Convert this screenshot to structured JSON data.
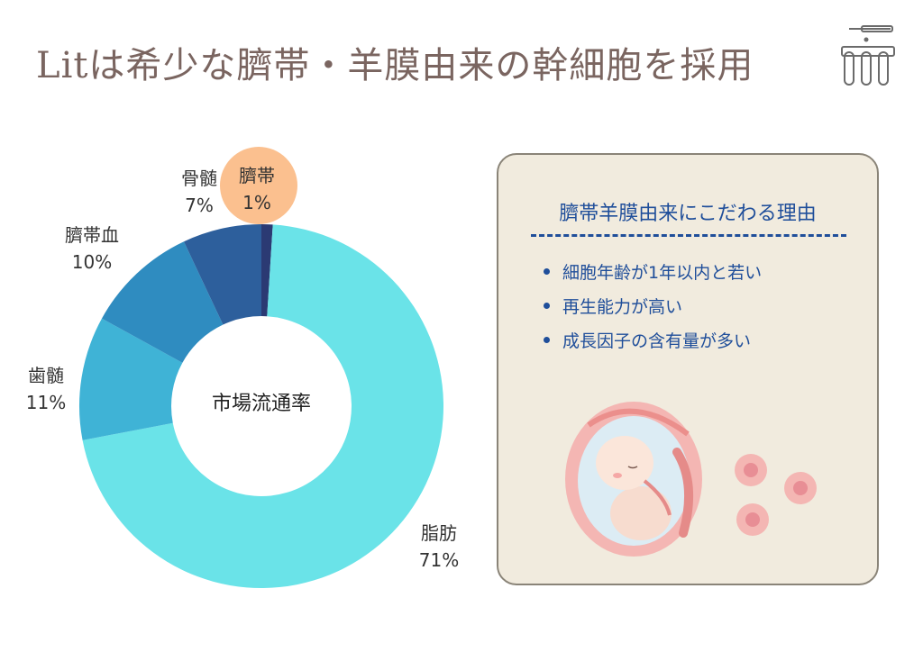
{
  "page": {
    "title": "Litは希少な臍帯・羊膜由来の幹細胞を採用"
  },
  "chart_data": {
    "type": "pie",
    "center_label": "市場流通率",
    "categories": [
      "臍帯",
      "脂肪",
      "歯髄",
      "臍帯血",
      "骨髄"
    ],
    "values": [
      1,
      71,
      11,
      10,
      7
    ],
    "value_labels": [
      "1%",
      "71%",
      "11%",
      "10%",
      "7%"
    ],
    "colors": [
      "#2b3a73",
      "#6ae3e8",
      "#3fb3d6",
      "#2f8cc0",
      "#2d5f9c"
    ],
    "highlight": "臍帯",
    "highlight_color": "#fbc08f"
  },
  "reasons": {
    "title": "臍帯羊膜由来にこだわる理由",
    "items": [
      "細胞年齢が1年以内と若い",
      "再生能力が高い",
      "成長因子の含有量が多い"
    ]
  }
}
